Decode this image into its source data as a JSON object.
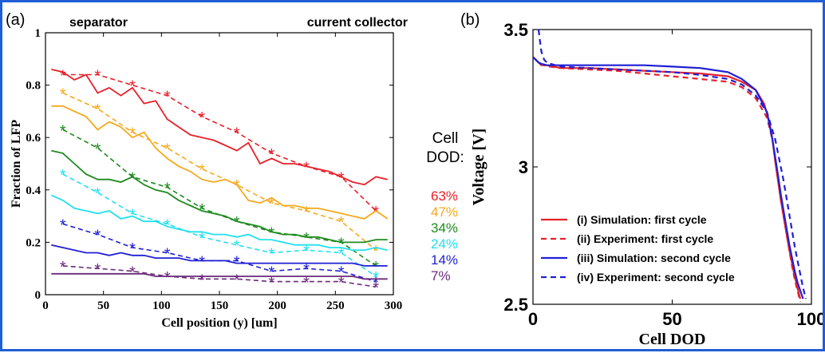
{
  "panel_labels": {
    "a": "(a)",
    "b": "(b)"
  },
  "annotations": {
    "separator": "separator",
    "current_collector": "current collector",
    "cell_dod_line1": "Cell",
    "cell_dod_line2": "DOD:"
  },
  "colors": {
    "frame": "#1f5fd6",
    "red": "#e8202a",
    "orange": "#f5a91c",
    "green": "#1f8a1f",
    "cyan": "#22e0ee",
    "blue": "#1f1fd6",
    "purple": "#6a2a7a"
  },
  "chart_data": [
    {
      "type": "line",
      "xlabel": "Cell position (y) [um]",
      "ylabel": "Fraction of LFP",
      "xlim": [
        0,
        300
      ],
      "ylim": [
        0,
        1
      ],
      "xticks": [
        "0",
        "50",
        "100",
        "150",
        "200",
        "250",
        "300"
      ],
      "yticks": [
        "0",
        "0.2",
        "0.4",
        "0.6",
        "0.8",
        "1"
      ],
      "grid": false,
      "legend": {
        "title": "Cell DOD:",
        "placement": "right",
        "entries": [
          "63%",
          "47%",
          "34%",
          "24%",
          "14%",
          "7%"
        ]
      },
      "series": [
        {
          "name": "63%",
          "color": "#e8202a",
          "sim": {
            "x": [
              5,
              15,
              25,
              35,
              45,
              55,
              65,
              75,
              85,
              95,
              105,
              115,
              125,
              135,
              145,
              155,
              165,
              175,
              185,
              195,
              205,
              215,
              225,
              235,
              245,
              255,
              265,
              275,
              285,
              295
            ],
            "y": [
              0.86,
              0.85,
              0.82,
              0.84,
              0.77,
              0.79,
              0.76,
              0.79,
              0.73,
              0.74,
              0.67,
              0.64,
              0.61,
              0.6,
              0.59,
              0.57,
              0.55,
              0.58,
              0.5,
              0.52,
              0.5,
              0.5,
              0.49,
              0.48,
              0.47,
              0.45,
              0.43,
              0.42,
              0.45,
              0.44
            ]
          },
          "exp": {
            "x": [
              15,
              45,
              75,
              105,
              135,
              165,
              195,
              225,
              255,
              285
            ],
            "y": [
              0.84,
              0.84,
              0.8,
              0.76,
              0.68,
              0.62,
              0.54,
              0.49,
              0.45,
              0.32
            ]
          }
        },
        {
          "name": "47%",
          "color": "#f5a91c",
          "sim": {
            "x": [
              5,
              15,
              25,
              35,
              45,
              55,
              65,
              75,
              85,
              95,
              105,
              115,
              125,
              135,
              145,
              155,
              165,
              175,
              185,
              195,
              205,
              215,
              225,
              235,
              245,
              255,
              265,
              275,
              285,
              295
            ],
            "y": [
              0.72,
              0.72,
              0.7,
              0.68,
              0.63,
              0.66,
              0.64,
              0.6,
              0.62,
              0.56,
              0.52,
              0.49,
              0.47,
              0.44,
              0.43,
              0.44,
              0.42,
              0.36,
              0.35,
              0.37,
              0.34,
              0.34,
              0.33,
              0.33,
              0.32,
              0.31,
              0.3,
              0.29,
              0.32,
              0.29
            ]
          },
          "exp": {
            "x": [
              15,
              45,
              75,
              105,
              135,
              165,
              195,
              225,
              255,
              285
            ],
            "y": [
              0.77,
              0.71,
              0.62,
              0.56,
              0.48,
              0.42,
              0.35,
              0.32,
              0.28,
              0.17
            ]
          }
        },
        {
          "name": "34%",
          "color": "#1f8a1f",
          "sim": {
            "x": [
              5,
              15,
              25,
              35,
              45,
              55,
              65,
              75,
              85,
              95,
              105,
              115,
              125,
              135,
              145,
              155,
              165,
              175,
              185,
              195,
              205,
              215,
              225,
              235,
              245,
              255,
              265,
              275,
              285,
              295
            ],
            "y": [
              0.55,
              0.54,
              0.5,
              0.46,
              0.44,
              0.44,
              0.43,
              0.45,
              0.42,
              0.4,
              0.39,
              0.36,
              0.34,
              0.32,
              0.31,
              0.3,
              0.28,
              0.27,
              0.26,
              0.24,
              0.23,
              0.23,
              0.22,
              0.22,
              0.21,
              0.2,
              0.2,
              0.2,
              0.21,
              0.21
            ]
          },
          "exp": {
            "x": [
              15,
              45,
              75,
              105,
              135,
              165,
              195,
              225,
              255,
              285
            ],
            "y": [
              0.63,
              0.56,
              0.45,
              0.41,
              0.33,
              0.28,
              0.24,
              0.22,
              0.2,
              0.11
            ]
          }
        },
        {
          "name": "24%",
          "color": "#22e0ee",
          "sim": {
            "x": [
              5,
              15,
              25,
              35,
              45,
              55,
              65,
              75,
              85,
              95,
              105,
              115,
              125,
              135,
              145,
              155,
              165,
              175,
              185,
              195,
              205,
              215,
              225,
              235,
              245,
              255,
              265,
              275,
              285,
              295
            ],
            "y": [
              0.38,
              0.36,
              0.33,
              0.32,
              0.31,
              0.32,
              0.29,
              0.3,
              0.28,
              0.28,
              0.26,
              0.25,
              0.24,
              0.24,
              0.23,
              0.23,
              0.22,
              0.23,
              0.21,
              0.21,
              0.2,
              0.19,
              0.19,
              0.19,
              0.18,
              0.18,
              0.17,
              0.17,
              0.18,
              0.17
            ]
          },
          "exp": {
            "x": [
              15,
              45,
              75,
              105,
              135,
              165,
              195,
              225,
              255,
              285
            ],
            "y": [
              0.46,
              0.39,
              0.31,
              0.27,
              0.22,
              0.19,
              0.16,
              0.17,
              0.16,
              0.07
            ]
          }
        },
        {
          "name": "14%",
          "color": "#1f1fd6",
          "sim": {
            "x": [
              5,
              15,
              25,
              35,
              45,
              55,
              65,
              75,
              85,
              95,
              105,
              115,
              125,
              135,
              145,
              155,
              165,
              175,
              185,
              195,
              205,
              215,
              225,
              235,
              245,
              255,
              265,
              275,
              285,
              295
            ],
            "y": [
              0.19,
              0.18,
              0.17,
              0.16,
              0.16,
              0.15,
              0.16,
              0.15,
              0.15,
              0.14,
              0.14,
              0.14,
              0.13,
              0.13,
              0.13,
              0.13,
              0.12,
              0.12,
              0.12,
              0.12,
              0.12,
              0.12,
              0.12,
              0.12,
              0.12,
              0.12,
              0.12,
              0.11,
              0.11,
              0.11
            ]
          },
          "exp": {
            "x": [
              15,
              45,
              75,
              105,
              135,
              165,
              195,
              225,
              255,
              285
            ],
            "y": [
              0.27,
              0.23,
              0.18,
              0.16,
              0.13,
              0.13,
              0.09,
              0.1,
              0.09,
              0.05
            ]
          }
        },
        {
          "name": "7%",
          "color": "#6a2a7a",
          "sim": {
            "x": [
              5,
              15,
              25,
              35,
              45,
              55,
              65,
              75,
              85,
              95,
              105,
              115,
              125,
              135,
              145,
              155,
              165,
              175,
              185,
              195,
              205,
              215,
              225,
              235,
              245,
              255,
              265,
              275,
              285,
              295
            ],
            "y": [
              0.08,
              0.08,
              0.08,
              0.08,
              0.08,
              0.08,
              0.08,
              0.08,
              0.08,
              0.07,
              0.07,
              0.07,
              0.07,
              0.07,
              0.07,
              0.07,
              0.07,
              0.07,
              0.07,
              0.07,
              0.07,
              0.07,
              0.07,
              0.07,
              0.07,
              0.07,
              0.07,
              0.06,
              0.06,
              0.06
            ]
          },
          "exp": {
            "x": [
              15,
              45,
              75,
              105,
              135,
              165,
              195,
              225,
              255,
              285
            ],
            "y": [
              0.11,
              0.1,
              0.09,
              0.07,
              0.06,
              0.06,
              0.05,
              0.05,
              0.05,
              0.03
            ]
          }
        }
      ]
    },
    {
      "type": "line",
      "xlabel": "Cell DOD",
      "ylabel": "Voltage [V]",
      "xlim": [
        0,
        100
      ],
      "ylim": [
        2.5,
        3.5
      ],
      "xticks": [
        "0",
        "50",
        "100"
      ],
      "yticks": [
        "2.5",
        "3",
        "3.5"
      ],
      "grid": false,
      "legend": {
        "placement": "bottom-left"
      },
      "series": [
        {
          "name": "(i) Simulation: first cycle",
          "color": "#e8202a",
          "dash": false,
          "x": [
            0,
            1,
            2,
            3,
            5,
            10,
            20,
            30,
            40,
            50,
            60,
            70,
            75,
            80,
            83,
            85,
            86,
            87,
            88,
            89,
            90,
            91,
            92,
            93,
            94,
            95,
            96
          ],
          "y": [
            3.4,
            3.39,
            3.38,
            3.37,
            3.37,
            3.36,
            3.36,
            3.355,
            3.35,
            3.345,
            3.34,
            3.33,
            3.31,
            3.28,
            3.23,
            3.16,
            3.1,
            3.02,
            2.95,
            2.88,
            2.82,
            2.76,
            2.7,
            2.65,
            2.6,
            2.56,
            2.52
          ]
        },
        {
          "name": "(ii) Experiment: first cycle",
          "color": "#e8202a",
          "dash": true,
          "x": [
            0,
            2,
            4,
            6,
            10,
            20,
            30,
            40,
            50,
            60,
            70,
            75,
            80,
            84,
            86,
            87,
            88,
            89,
            90,
            91,
            92,
            93,
            94,
            95,
            96
          ],
          "y": [
            3.4,
            3.38,
            3.37,
            3.365,
            3.36,
            3.355,
            3.35,
            3.34,
            3.33,
            3.32,
            3.31,
            3.29,
            3.25,
            3.18,
            3.1,
            3.03,
            2.96,
            2.88,
            2.82,
            2.76,
            2.7,
            2.64,
            2.59,
            2.55,
            2.51
          ]
        },
        {
          "name": "(iii) Simulation: second cycle",
          "color": "#1f1fd6",
          "dash": false,
          "x": [
            0,
            1,
            2,
            3,
            5,
            10,
            20,
            30,
            40,
            50,
            60,
            70,
            75,
            80,
            84,
            86,
            88,
            89,
            90,
            91,
            92,
            93,
            94,
            95,
            96,
            97
          ],
          "y": [
            3.4,
            3.39,
            3.38,
            3.375,
            3.37,
            3.37,
            3.37,
            3.37,
            3.37,
            3.365,
            3.36,
            3.345,
            3.32,
            3.28,
            3.2,
            3.1,
            2.97,
            2.9,
            2.84,
            2.78,
            2.72,
            2.67,
            2.62,
            2.58,
            2.55,
            2.52
          ]
        },
        {
          "name": "(iv) Experiment: second cycle",
          "color": "#1f1fd6",
          "dash": true,
          "x": [
            2,
            2.5,
            3,
            4,
            5,
            8,
            10,
            20,
            30,
            40,
            50,
            60,
            70,
            75,
            80,
            84,
            87,
            89,
            90,
            91,
            92,
            93,
            94,
            95,
            96,
            97,
            98
          ],
          "y": [
            3.5,
            3.46,
            3.42,
            3.39,
            3.38,
            3.37,
            3.365,
            3.36,
            3.355,
            3.35,
            3.345,
            3.335,
            3.32,
            3.3,
            3.26,
            3.2,
            3.1,
            3.0,
            2.95,
            2.89,
            2.83,
            2.77,
            2.71,
            2.66,
            2.61,
            2.56,
            2.52
          ]
        }
      ]
    }
  ]
}
